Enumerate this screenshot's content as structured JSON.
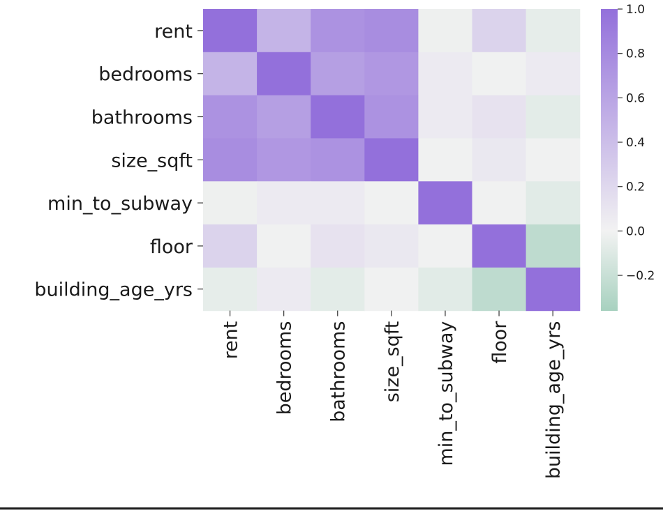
{
  "chart_data": {
    "type": "heatmap",
    "title": "",
    "xlabel": "",
    "ylabel": "",
    "row_labels": [
      "rent",
      "bedrooms",
      "bathrooms",
      "size_sqft",
      "min_to_subway",
      "floor",
      "building_age_yrs"
    ],
    "col_labels": [
      "rent",
      "bedrooms",
      "bathrooms",
      "size_sqft",
      "min_to_subway",
      "floor",
      "building_age_yrs"
    ],
    "values": [
      [
        1.0,
        0.48,
        0.74,
        0.78,
        -0.02,
        0.24,
        -0.06
      ],
      [
        0.48,
        1.0,
        0.64,
        0.7,
        0.06,
        -0.01,
        0.06
      ],
      [
        0.74,
        0.64,
        1.0,
        0.74,
        0.06,
        0.12,
        -0.07
      ],
      [
        0.78,
        0.7,
        0.74,
        1.0,
        -0.01,
        0.08,
        -0.01
      ],
      [
        -0.02,
        0.06,
        0.06,
        -0.01,
        1.0,
        -0.01,
        -0.08
      ],
      [
        0.24,
        -0.01,
        0.12,
        0.08,
        -0.01,
        1.0,
        -0.25
      ],
      [
        -0.06,
        0.06,
        -0.07,
        -0.01,
        -0.08,
        -0.25,
        1.0
      ]
    ],
    "colorbar": {
      "min": -0.36,
      "max": 1.0,
      "ticks": [
        "1.0",
        "0.8",
        "0.6",
        "0.4",
        "0.2",
        "0.0",
        "−0.2"
      ],
      "tick_values": [
        1.0,
        0.8,
        0.6,
        0.4,
        0.2,
        0.0,
        -0.2
      ]
    },
    "colors": {
      "positive": "#9370DB",
      "center": "#F2F2F2",
      "negative": "#A7D1BF"
    },
    "grid": false,
    "legend": "colorbar-right"
  }
}
